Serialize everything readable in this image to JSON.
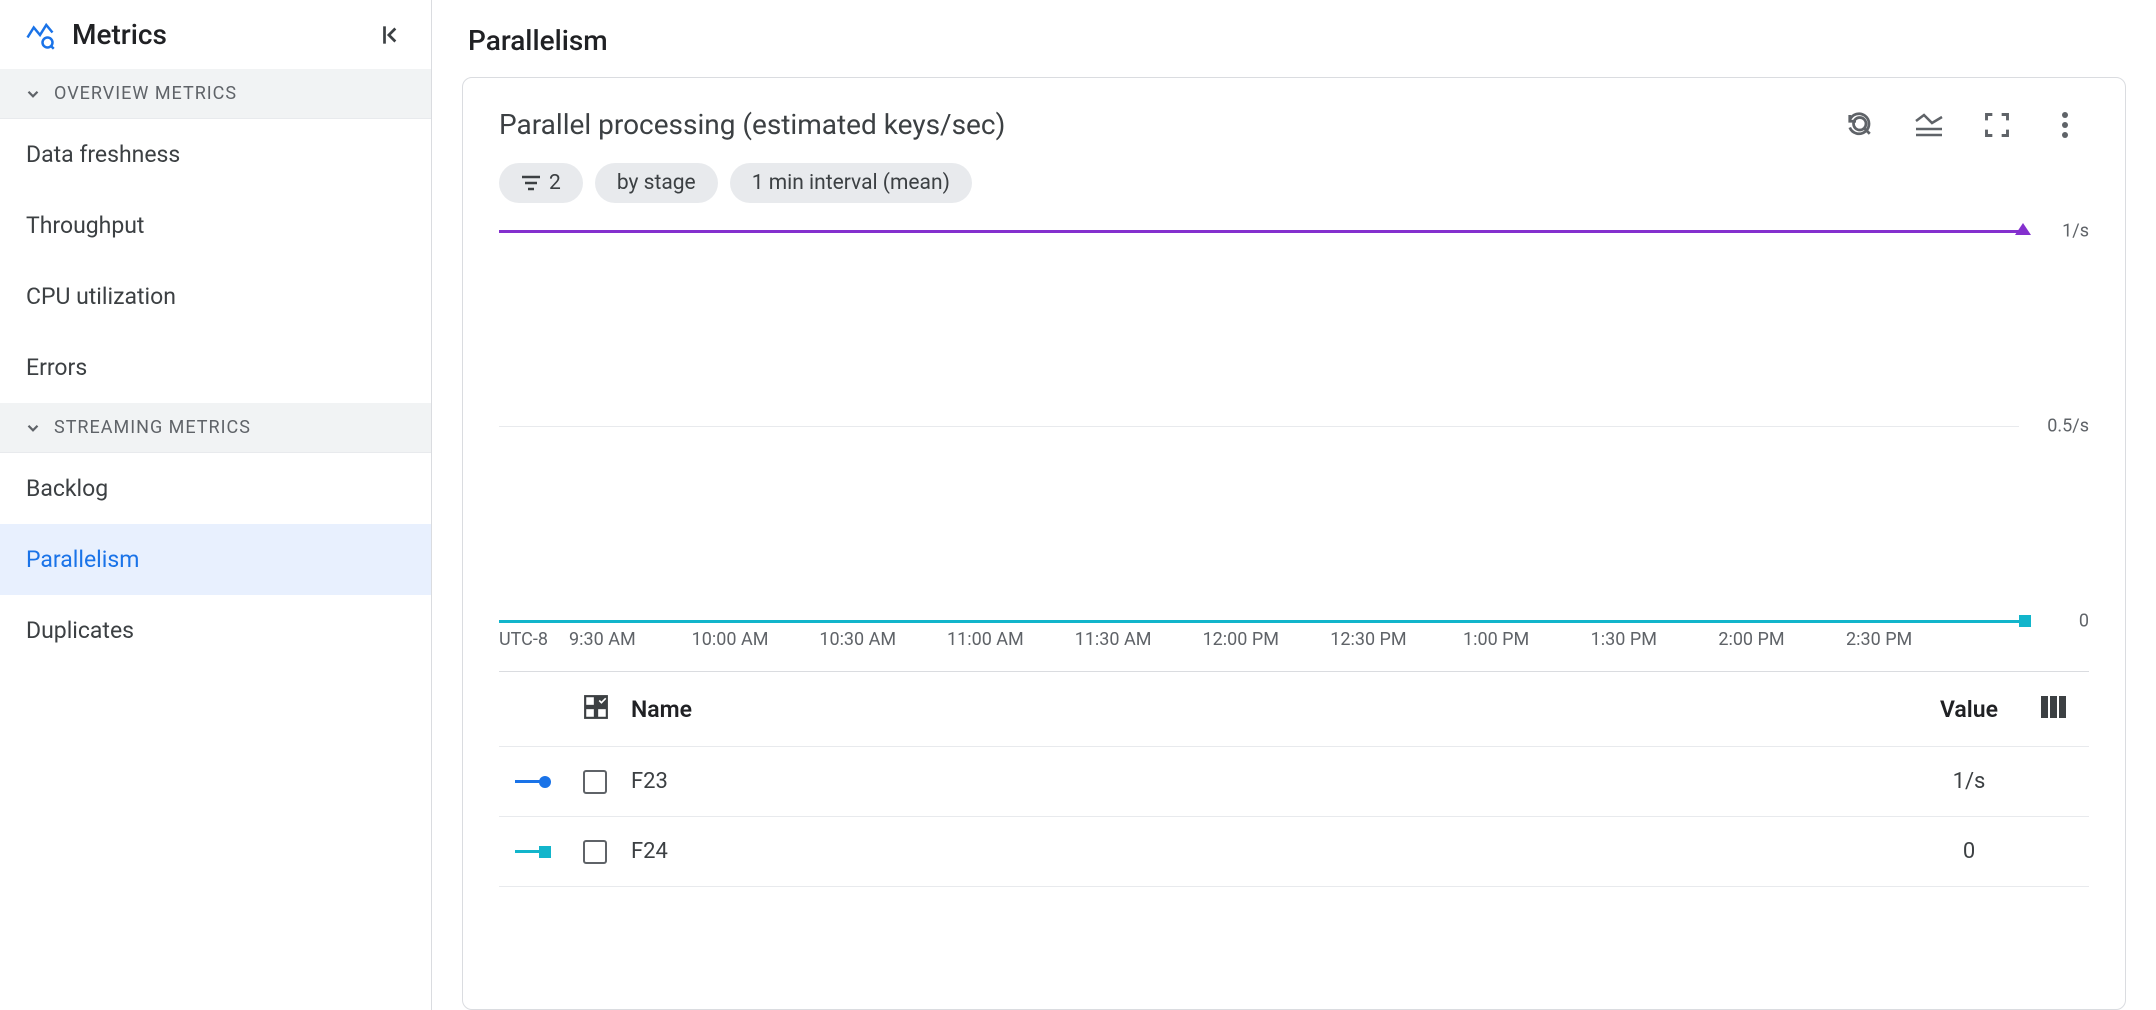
{
  "sidebar": {
    "title": "Metrics",
    "sections": [
      {
        "label": "OVERVIEW METRICS",
        "items": [
          "Data freshness",
          "Throughput",
          "CPU utilization",
          "Errors"
        ]
      },
      {
        "label": "STREAMING METRICS",
        "items": [
          "Backlog",
          "Parallelism",
          "Duplicates"
        ]
      }
    ],
    "active_item": "Parallelism"
  },
  "main": {
    "page_title": "Parallelism",
    "card_title": "Parallel processing (estimated keys/sec)",
    "chips": {
      "filter_count": "2",
      "group_by": "by stage",
      "interval": "1 min interval (mean)"
    },
    "chart": {
      "type": "line",
      "timezone_label": "UTC-8",
      "background_color": "#ffffff",
      "grid_color": "#e8eaed",
      "text_color": "#5f6368",
      "y_axis": {
        "ticks": [
          {
            "label": "1/s",
            "value": 1.0
          },
          {
            "label": "0.5/s",
            "value": 0.5
          },
          {
            "label": "0",
            "value": 0.0
          }
        ],
        "min": 0,
        "max": 1
      },
      "x_axis": {
        "ticks": [
          {
            "label": "9:30 AM",
            "pos": 0.068
          },
          {
            "label": "10:00 AM",
            "pos": 0.152
          },
          {
            "label": "10:30 AM",
            "pos": 0.236
          },
          {
            "label": "11:00 AM",
            "pos": 0.32
          },
          {
            "label": "11:30 AM",
            "pos": 0.404
          },
          {
            "label": "12:00 PM",
            "pos": 0.488
          },
          {
            "label": "12:30 PM",
            "pos": 0.572
          },
          {
            "label": "1:00 PM",
            "pos": 0.656
          },
          {
            "label": "1:30 PM",
            "pos": 0.74
          },
          {
            "label": "2:00 PM",
            "pos": 0.824
          },
          {
            "label": "2:30 PM",
            "pos": 0.908
          }
        ]
      },
      "series": [
        {
          "name": "F23",
          "color": "#8430ce",
          "marker": "triangle",
          "constant_value": 1.0
        },
        {
          "name": "F24",
          "color": "#12b5cb",
          "marker": "square",
          "constant_value": 0.0
        }
      ]
    },
    "legend": {
      "columns": {
        "name": "Name",
        "value": "Value"
      },
      "rows": [
        {
          "name": "F23",
          "value": "1/s",
          "swatch_color": "#1a73e8",
          "marker": "circle"
        },
        {
          "name": "F24",
          "value": "0",
          "swatch_color": "#12b5cb",
          "marker": "square"
        }
      ]
    }
  }
}
